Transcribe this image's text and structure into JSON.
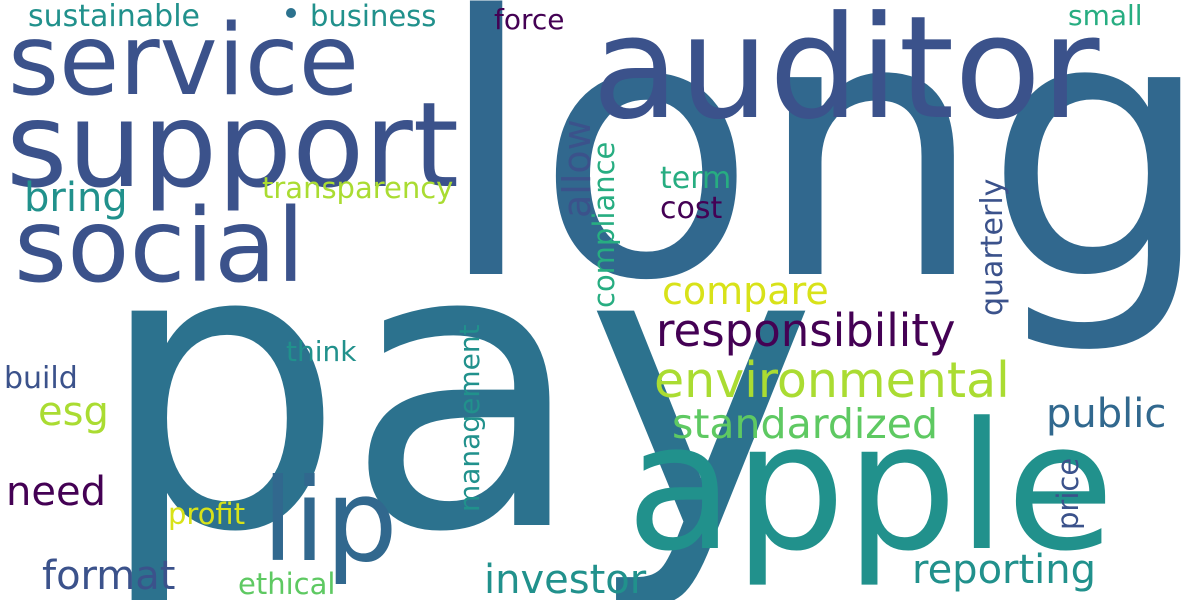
{
  "palette": {
    "dark_purple": "#440154",
    "indigo": "#3b528b",
    "steel_blue": "#31688e",
    "teal_blue": "#2c728e",
    "teal": "#21918c",
    "green": "#27ad81",
    "light_green": "#5ec962",
    "yellow_green": "#aadc32",
    "yellow": "#d8e219"
  },
  "words": {
    "long": "long",
    "pay": "pay",
    "apple": "apple",
    "auditor": "auditor",
    "support": "support",
    "service": "service",
    "social": "social",
    "lip": "lip",
    "environmental": "environmental",
    "responsibility": "responsibility",
    "standardized": "standardized",
    "reporting": "reporting",
    "investor": "investor",
    "compare": "compare",
    "public": "public",
    "format": "format",
    "need": "need",
    "bring": "bring",
    "transparency": "transparency",
    "allow": "allow",
    "compliance": "compliance",
    "cost": "cost",
    "term": "term",
    "quarterly": "quarterly",
    "management": "management",
    "price": "price",
    "sustainable": "sustainable",
    "business": "business",
    "force": "force",
    "small": "small",
    "think": "think",
    "build": "build",
    "esg": "esg",
    "profit": "profit",
    "ethical": "ethical"
  }
}
